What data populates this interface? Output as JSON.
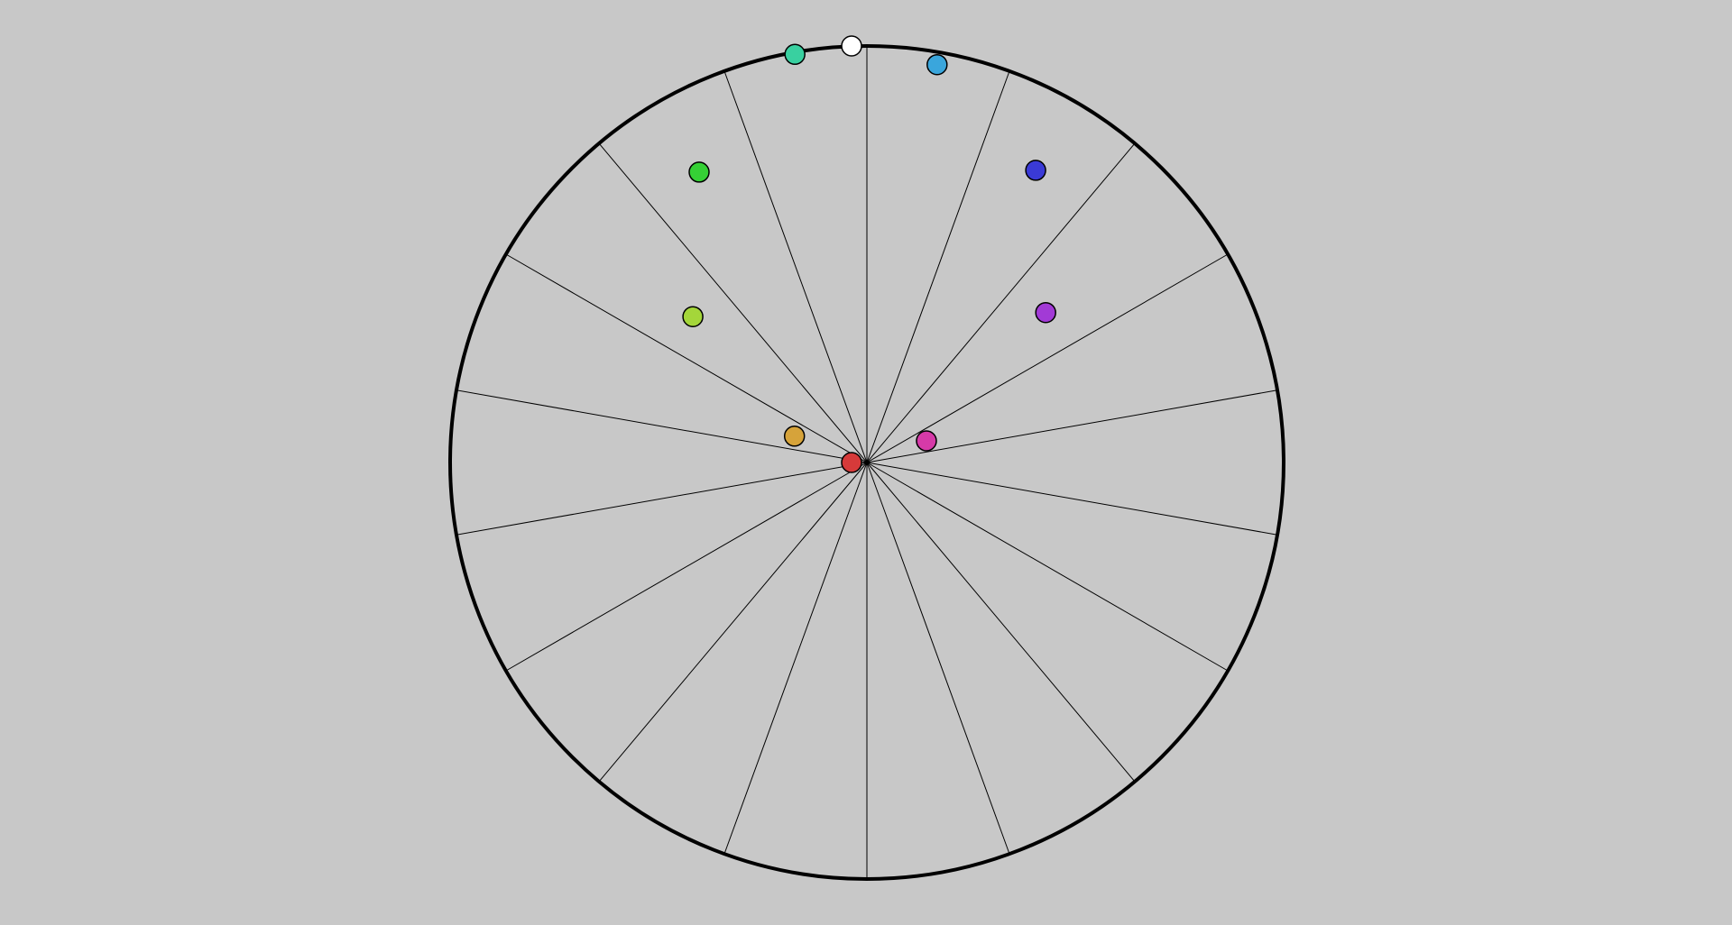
{
  "canvas": {
    "background": "#c8c8c8",
    "circle_stroke": "#000000",
    "spoke_stroke": "#000000",
    "dot_stroke": "#000000"
  },
  "wheel": {
    "spoke_count": 18,
    "spoke_angle_step_deg": 20
  },
  "dots": [
    {
      "name": "red-dot",
      "color": "#d63a3a",
      "angle_deg": 0,
      "fraction": 0.0
    },
    {
      "name": "white-dot",
      "color": "#ffffff",
      "angle_deg": 0,
      "fraction": 1.0
    },
    {
      "name": "teal-dot",
      "color": "#39d0a0",
      "angle_deg": -10,
      "fraction": 0.995
    },
    {
      "name": "sky-blue-dot",
      "color": "#3aa6dc",
      "angle_deg": 10,
      "fraction": 0.97
    },
    {
      "name": "green-dot",
      "color": "#35d035",
      "angle_deg": -30,
      "fraction": 0.805
    },
    {
      "name": "blue-dot",
      "color": "#3a3ad6",
      "angle_deg": 30,
      "fraction": 0.81
    },
    {
      "name": "yellow-green-dot",
      "color": "#a4d63a",
      "angle_deg": -50,
      "fraction": 0.545
    },
    {
      "name": "violet-dot",
      "color": "#a23ad6",
      "angle_deg": 50,
      "fraction": 0.56
    },
    {
      "name": "orange-dot",
      "color": "#d6a33a",
      "angle_deg": -70,
      "fraction": 0.185
    },
    {
      "name": "magenta-dot",
      "color": "#d63aa8",
      "angle_deg": 70,
      "fraction": 0.152
    }
  ]
}
